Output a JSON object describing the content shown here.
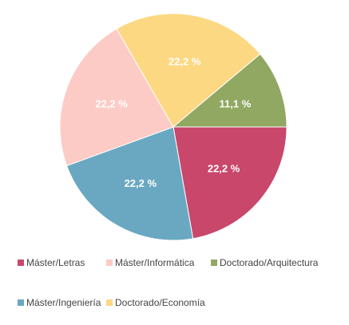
{
  "chart_data": {
    "type": "pie",
    "title": "",
    "start_angle_deg": 0,
    "direction": "clockwise",
    "slices": [
      {
        "name": "Máster/Letras",
        "value": 22.2,
        "label": "22,2 %",
        "color": "#c8476a"
      },
      {
        "name": "Máster/Ingeniería",
        "value": 22.2,
        "label": "22,2 %",
        "color": "#6aa8c2"
      },
      {
        "name": "Máster/Informática",
        "value": 22.2,
        "label": "22,2 %",
        "color": "#fdcbc6"
      },
      {
        "name": "Doctorado/Economía",
        "value": 22.2,
        "label": "22,2 %",
        "color": "#fcd882"
      },
      {
        "name": "Doctorado/Arquitectura",
        "value": 11.1,
        "label": "11,1 %",
        "color": "#90a862"
      }
    ],
    "legend": {
      "placement": "bottom",
      "items": [
        {
          "label": "Máster/Letras",
          "color": "#c8476a"
        },
        {
          "label": "Máster/Informática",
          "color": "#fdcbc6"
        },
        {
          "label": "Doctorado/Arquitectura",
          "color": "#90a862"
        },
        {
          "label": "Máster/Ingeniería",
          "color": "#6aa8c2"
        },
        {
          "label": "Doctorado/Economía",
          "color": "#fcd882"
        }
      ]
    }
  }
}
